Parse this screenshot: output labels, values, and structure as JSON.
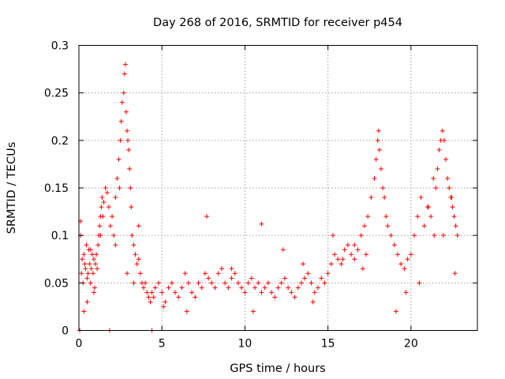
{
  "chart_data": {
    "type": "scatter",
    "title": "Day 268 of 2016, SRMTID for receiver p454",
    "xlabel": "GPS time / hours",
    "ylabel": "SRMTID / TECUs",
    "xlim": [
      0,
      24
    ],
    "ylim": [
      0,
      0.3
    ],
    "xticks": [
      0,
      5,
      10,
      15,
      20
    ],
    "xtick_labels": [
      "0",
      "5",
      "10",
      "15",
      "20"
    ],
    "yticks": [
      0,
      0.05,
      0.1,
      0.15,
      0.2,
      0.25,
      0.3
    ],
    "ytick_labels": [
      "0",
      "0.05",
      "0.1",
      "0.15",
      "0.2",
      "0.25",
      "0.3"
    ],
    "grid": true,
    "marker": "plus",
    "color": "#ff0000",
    "series": [
      {
        "name": "SRMTID",
        "x": [
          0.1,
          0.1,
          0.15,
          0.2,
          0.25,
          0.3,
          0.35,
          0.4,
          0.45,
          0.5,
          0.55,
          0.6,
          0.65,
          0.7,
          0.75,
          0.8,
          0.85,
          0.9,
          0.95,
          1.0,
          1.05,
          1.1,
          1.15,
          1.2,
          1.25,
          1.3,
          1.35,
          1.4,
          1.45,
          1.5,
          1.6,
          1.7,
          1.8,
          1.9,
          2.0,
          2.1,
          2.2,
          2.3,
          2.4,
          2.5,
          2.55,
          2.6,
          2.7,
          2.75,
          2.8,
          2.85,
          2.9,
          2.95,
          3.0,
          3.05,
          3.1,
          3.15,
          3.2,
          3.3,
          3.4,
          3.5,
          3.6,
          3.7,
          3.8,
          3.9,
          4.0,
          4.1,
          4.2,
          4.3,
          4.4,
          4.5,
          4.6,
          4.8,
          5.0,
          5.2,
          5.4,
          5.6,
          5.8,
          6.0,
          6.2,
          6.4,
          6.6,
          6.8,
          7.0,
          7.2,
          7.4,
          7.6,
          7.8,
          8.0,
          8.2,
          8.4,
          8.6,
          8.8,
          9.0,
          9.2,
          9.4,
          9.6,
          9.8,
          10.0,
          10.2,
          10.4,
          10.6,
          10.8,
          11.0,
          11.2,
          11.4,
          11.6,
          11.8,
          12.0,
          12.2,
          12.4,
          12.6,
          12.8,
          13.0,
          13.2,
          13.4,
          13.6,
          13.8,
          14.0,
          14.2,
          14.4,
          14.6,
          14.8,
          15.0,
          15.2,
          15.4,
          15.6,
          15.8,
          16.0,
          16.2,
          16.4,
          16.6,
          16.8,
          17.0,
          17.2,
          17.4,
          17.6,
          17.8,
          17.9,
          18.0,
          18.1,
          18.2,
          18.3,
          18.4,
          18.5,
          18.6,
          18.8,
          19.0,
          19.2,
          19.4,
          19.6,
          19.8,
          20.0,
          20.2,
          20.4,
          20.6,
          20.8,
          21.0,
          21.2,
          21.4,
          21.5,
          21.6,
          21.7,
          21.8,
          21.9,
          22.0,
          22.1,
          22.2,
          22.3,
          22.4,
          22.5,
          22.6,
          22.7,
          22.8,
          0.05,
          1.85,
          4.4,
          0.3,
          0.5,
          0.9,
          1.3,
          2.2,
          2.9,
          3.3,
          3.6,
          6.5,
          9.2,
          11.0,
          13.5,
          15.3,
          16.6,
          17.3,
          18.05,
          19.7,
          21.05,
          21.95,
          22.45,
          0.7,
          2.45,
          5.1,
          7.7,
          10.5,
          12.3,
          14.1,
          15.9,
          17.1,
          19.1,
          20.5,
          21.35,
          22.65
        ],
        "y": [
          0.1,
          0.115,
          0.06,
          0.075,
          0.05,
          0.08,
          0.07,
          0.065,
          0.09,
          0.055,
          0.06,
          0.085,
          0.07,
          0.05,
          0.065,
          0.08,
          0.06,
          0.075,
          0.045,
          0.07,
          0.08,
          0.065,
          0.09,
          0.1,
          0.11,
          0.12,
          0.13,
          0.14,
          0.12,
          0.135,
          0.15,
          0.145,
          0.13,
          0.11,
          0.12,
          0.1,
          0.14,
          0.16,
          0.18,
          0.2,
          0.22,
          0.24,
          0.25,
          0.27,
          0.28,
          0.23,
          0.21,
          0.2,
          0.19,
          0.17,
          0.15,
          0.13,
          0.1,
          0.09,
          0.08,
          0.07,
          0.075,
          0.06,
          0.05,
          0.045,
          0.05,
          0.04,
          0.035,
          0.03,
          0.04,
          0.035,
          0.045,
          0.05,
          0.04,
          0.03,
          0.045,
          0.05,
          0.04,
          0.035,
          0.045,
          0.06,
          0.05,
          0.04,
          0.035,
          0.05,
          0.045,
          0.06,
          0.055,
          0.05,
          0.045,
          0.06,
          0.065,
          0.05,
          0.045,
          0.055,
          0.06,
          0.05,
          0.045,
          0.04,
          0.05,
          0.055,
          0.045,
          0.05,
          0.04,
          0.045,
          0.05,
          0.04,
          0.035,
          0.045,
          0.05,
          0.055,
          0.045,
          0.04,
          0.035,
          0.045,
          0.05,
          0.055,
          0.06,
          0.05,
          0.04,
          0.045,
          0.055,
          0.05,
          0.06,
          0.07,
          0.08,
          0.075,
          0.07,
          0.085,
          0.09,
          0.08,
          0.075,
          0.085,
          0.1,
          0.11,
          0.12,
          0.14,
          0.16,
          0.18,
          0.2,
          0.19,
          0.17,
          0.15,
          0.14,
          0.12,
          0.11,
          0.1,
          0.09,
          0.08,
          0.07,
          0.065,
          0.075,
          0.08,
          0.1,
          0.12,
          0.14,
          0.11,
          0.13,
          0.12,
          0.1,
          0.15,
          0.17,
          0.19,
          0.2,
          0.21,
          0.2,
          0.18,
          0.16,
          0.15,
          0.14,
          0.13,
          0.12,
          0.11,
          0.1,
          0.0,
          0.0,
          0.0,
          0.02,
          0.03,
          0.04,
          0.1,
          0.09,
          0.06,
          0.05,
          0.11,
          0.02,
          0.065,
          0.112,
          0.07,
          0.1,
          0.09,
          0.08,
          0.21,
          0.04,
          0.13,
          0.1,
          0.14,
          0.085,
          0.15,
          0.025,
          0.12,
          0.02,
          0.085,
          0.03,
          0.075,
          0.065,
          0.02,
          0.05,
          0.16,
          0.06
        ]
      }
    ]
  }
}
